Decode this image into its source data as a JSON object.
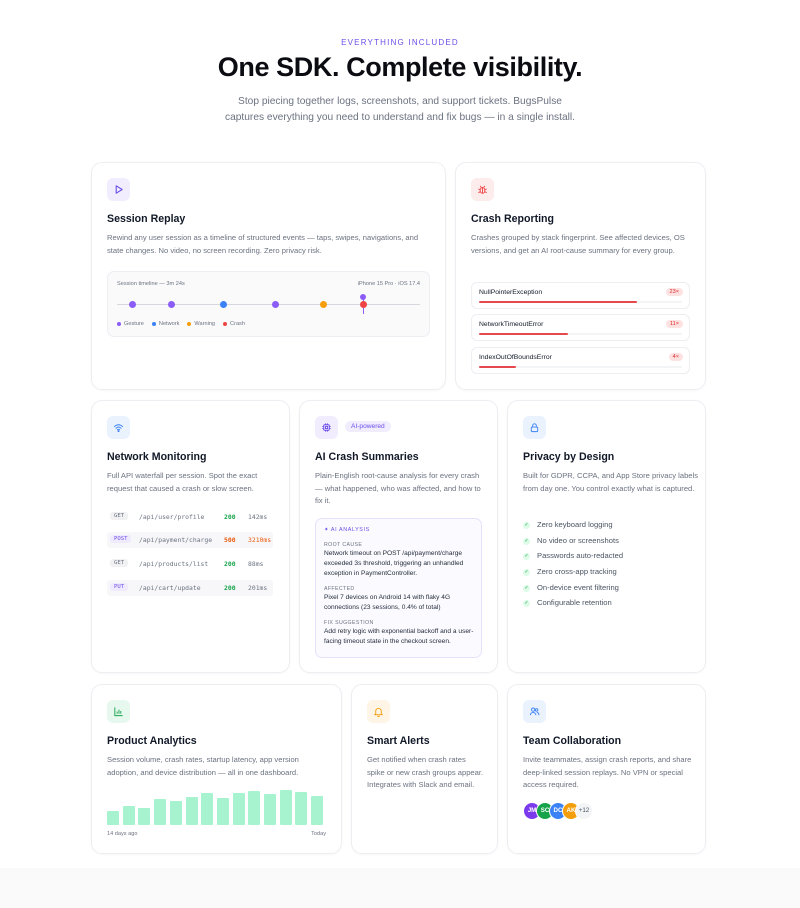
{
  "eyebrow": "EVERYTHING INCLUDED",
  "headline": "One SDK. Complete visibility.",
  "subtitle": "Stop piecing together logs, screenshots, and support tickets. BugsPulse captures everything you need to understand and fix bugs — in a single install.",
  "session_replay": {
    "title": "Session Replay",
    "desc": "Rewind any user session as a timeline of structured events — taps, swipes, navigations, and state changes. No video, no screen recording. Zero privacy risk.",
    "timeline_label": "Session timeline — 3m 24s",
    "device_label": "iPhone 15 Pro · iOS 17.4",
    "legend": [
      "Gesture",
      "Network",
      "Warning",
      "Crash"
    ],
    "colors": {
      "gesture": "#8b5cf6",
      "network": "#3b82f6",
      "warning": "#f59e0b",
      "crash": "#ef4444"
    }
  },
  "crash_reporting": {
    "title": "Crash Reporting",
    "desc": "Crashes grouped by stack fingerprint. See affected devices, OS versions, and get an AI root-cause summary for every group.",
    "rows": [
      {
        "name": "NullPointerException",
        "count": "23×",
        "fraction": 0.78
      },
      {
        "name": "NetworkTimeoutError",
        "count": "11×",
        "fraction": 0.44
      },
      {
        "name": "IndexOutOfBoundsError",
        "count": "4×",
        "fraction": 0.18
      }
    ]
  },
  "network": {
    "title": "Network Monitoring",
    "desc": "Full API waterfall per session. Spot the exact request that caused a crash or slow screen.",
    "rows": [
      {
        "method": "GET",
        "path": "/api/user/profile",
        "status": "200",
        "ms": "142ms"
      },
      {
        "method": "POST",
        "path": "/api/payment/charge",
        "status": "500",
        "ms": "3210ms"
      },
      {
        "method": "GET",
        "path": "/api/products/list",
        "status": "200",
        "ms": "88ms"
      },
      {
        "method": "PUT",
        "path": "/api/cart/update",
        "status": "200",
        "ms": "201ms"
      }
    ]
  },
  "ai": {
    "title": "AI Crash Summaries",
    "badge": "AI-powered",
    "desc": "Plain-English root-cause analysis for every crash — what happened, who was affected, and how to fix it.",
    "panel_head": "✦ AI ANALYSIS",
    "root_cause_label": "ROOT CAUSE",
    "root_cause": "Network timeout on POST /api/payment/charge exceeded 3s threshold, triggering an unhandled exception in PaymentController.",
    "affected_label": "AFFECTED",
    "affected": "Pixel 7 devices on Android 14 with flaky 4G connections (23 sessions, 0.4% of total)",
    "fix_label": "FIX SUGGESTION",
    "fix": "Add retry logic with exponential backoff and a user-facing timeout state in the checkout screen."
  },
  "privacy": {
    "title": "Privacy by Design",
    "desc": "Built for GDPR, CCPA, and App Store privacy labels from day one. You control exactly what is captured.",
    "items": [
      "Zero keyboard logging",
      "No video or screenshots",
      "Passwords auto-redacted",
      "Zero cross-app tracking",
      "On-device event filtering",
      "Configurable retention"
    ]
  },
  "analytics": {
    "title": "Product Analytics",
    "desc": "Session volume, crash rates, startup latency, app version adoption, and device distribution — all in one dashboard.",
    "axis_start": "14 days ago",
    "axis_end": "Today"
  },
  "alerts": {
    "title": "Smart Alerts",
    "desc": "Get notified when crash rates spike or new crash groups appear. Integrates with Slack and email."
  },
  "team": {
    "title": "Team Collaboration",
    "desc": "Invite teammates, assign crash reports, and share deep-linked session replays. No VPN or special access required.",
    "avatars": [
      {
        "initials": "JM",
        "color": "#7c3aed"
      },
      {
        "initials": "SC",
        "color": "#16a34a"
      },
      {
        "initials": "DC",
        "color": "#3b82f6"
      },
      {
        "initials": "AK",
        "color": "#f59e0b"
      }
    ],
    "more": "+12"
  }
}
